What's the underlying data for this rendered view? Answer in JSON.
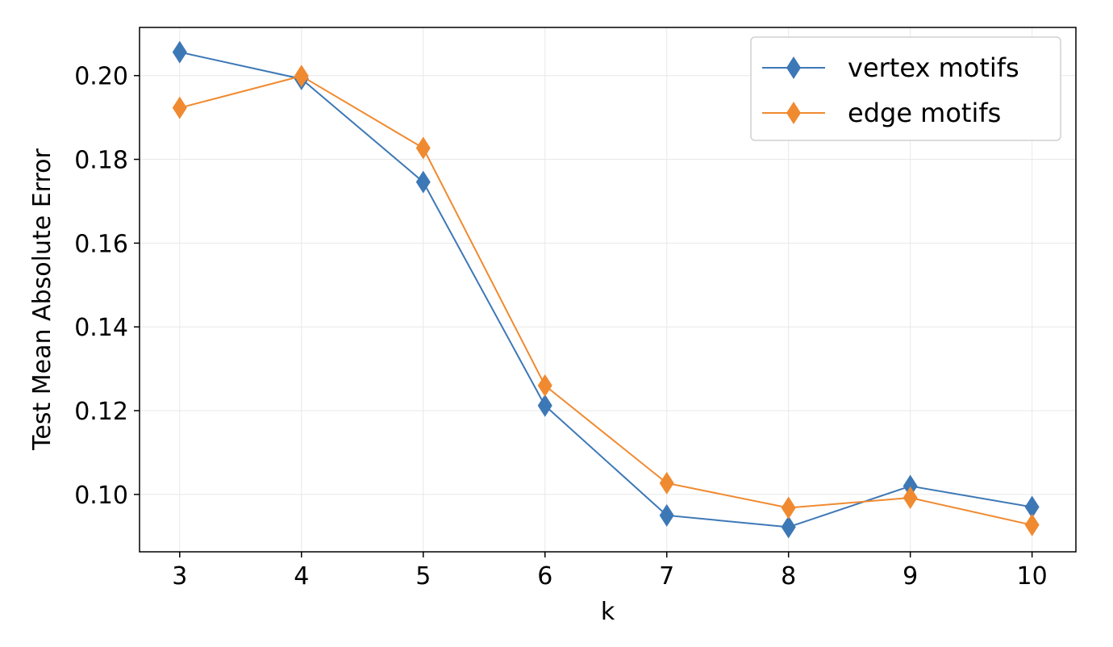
{
  "chart_data": {
    "type": "line",
    "title": "",
    "xlabel": "k",
    "ylabel": "Test Mean Absolute Error",
    "x": [
      3,
      4,
      5,
      6,
      7,
      8,
      9,
      10
    ],
    "xlim": [
      2.67,
      10.36
    ],
    "ylim": [
      0.0863,
      0.2115
    ],
    "xticks": [
      3,
      4,
      5,
      6,
      7,
      8,
      9,
      10
    ],
    "yticks": [
      0.1,
      0.12,
      0.14,
      0.16,
      0.18,
      0.2
    ],
    "grid": true,
    "legend_position": "top-right",
    "marker": "diamond",
    "series": [
      {
        "name": "vertex motifs",
        "color": "#3d78b6",
        "values": [
          0.2056,
          0.1992,
          0.1746,
          0.1212,
          0.095,
          0.0922,
          0.102,
          0.097
        ]
      },
      {
        "name": "edge motifs",
        "color": "#f08a30",
        "values": [
          0.1923,
          0.1999,
          0.1827,
          0.126,
          0.1027,
          0.0968,
          0.0992,
          0.0927
        ]
      }
    ]
  }
}
